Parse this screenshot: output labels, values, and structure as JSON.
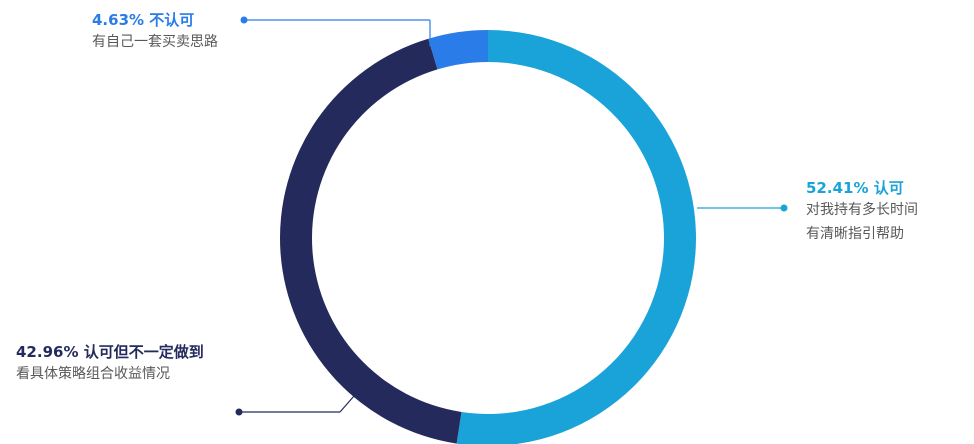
{
  "chart_data": {
    "type": "pie",
    "style": "donut",
    "slices": [
      {
        "value": 52.41,
        "percent_label": "52.41%",
        "label": "认可",
        "description_lines": [
          "对我持有多长时间",
          "有清晰指引帮助"
        ],
        "color": "#1aa3d9"
      },
      {
        "value": 42.96,
        "percent_label": "42.96%",
        "label": "认可但不一定做到",
        "description_lines": [
          "看具体策略组合收益情况"
        ],
        "color": "#242b5c"
      },
      {
        "value": 4.63,
        "percent_label": "4.63%",
        "label": "不认可",
        "description_lines": [
          "有自己一套买卖思路"
        ],
        "color": "#2a7de8"
      }
    ],
    "label_colors": {
      "approve": "#1aa3d9",
      "partial": "#242b5c",
      "not_approve": "#2a7de8"
    },
    "legend": "none"
  }
}
